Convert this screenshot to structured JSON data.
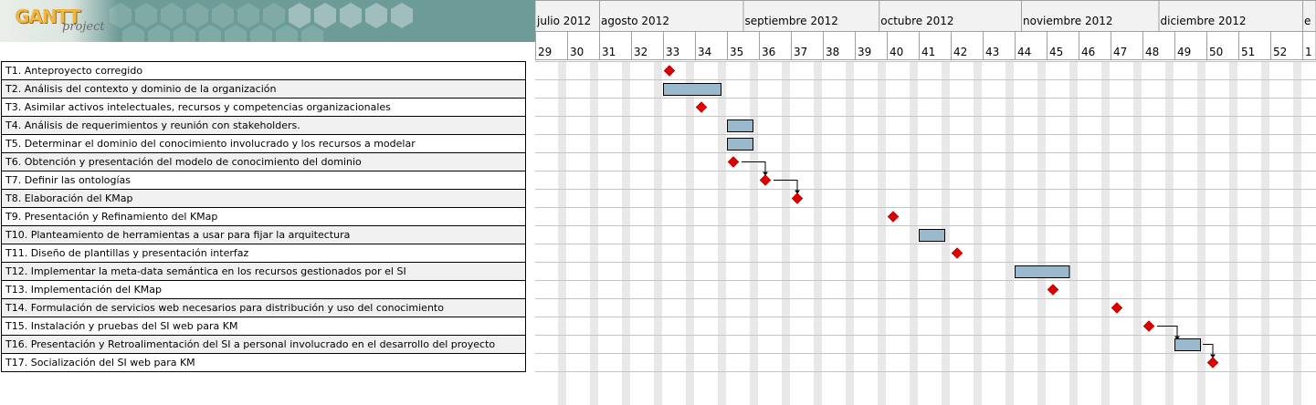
{
  "logo": {
    "text": "GANTT",
    "sub": "project"
  },
  "timeline": {
    "months": [
      "julio 2012",
      "agosto 2012",
      "septiembre 2012",
      "octubre 2012",
      "noviembre 2012",
      "diciembre 2012",
      "e"
    ],
    "weeks": [
      "29",
      "30",
      "31",
      "32",
      "33",
      "34",
      "35",
      "36",
      "37",
      "38",
      "39",
      "40",
      "41",
      "42",
      "43",
      "44",
      "45",
      "46",
      "47",
      "48",
      "49",
      "50",
      "51",
      "52",
      "1"
    ]
  },
  "colors": {
    "bar_fill": "#9ab9cc",
    "milestone": "#e00000",
    "weekend": "#e8e8e8",
    "grid": "#a0a0a0"
  },
  "tasks": [
    {
      "label": "T1. Anteproyecto corregido",
      "type": "milestone",
      "week": 33
    },
    {
      "label": "T2. Análisis del contexto y dominio de la organización",
      "type": "bar",
      "start_week": 33,
      "end_week": 34.8
    },
    {
      "label": "T3. Asimilar activos intelectuales, recursos y competencias organizacionales",
      "type": "milestone",
      "week": 34
    },
    {
      "label": "T4. Análisis de requerimientos y reunión con stakeholders.",
      "type": "bar",
      "start_week": 35,
      "end_week": 35.8
    },
    {
      "label": "T5. Determinar el dominio del conocimiento involucrado y los recursos a modelar",
      "type": "bar",
      "start_week": 35,
      "end_week": 35.8
    },
    {
      "label": "T6. Obtención y presentación del modelo de conocimiento del dominio",
      "type": "milestone",
      "week": 35
    },
    {
      "label": "T7. Definir las ontologías",
      "type": "milestone",
      "week": 36
    },
    {
      "label": "T8. Elaboración del KMap",
      "type": "milestone",
      "week": 37
    },
    {
      "label": "T9. Presentación y Refinamiento del KMap",
      "type": "milestone",
      "week": 40
    },
    {
      "label": "T10. Planteamiento de herramientas a usar para fijar la arquitectura",
      "type": "bar",
      "start_week": 41,
      "end_week": 41.8
    },
    {
      "label": "T11. Diseño de plantillas y presentación interfaz",
      "type": "milestone",
      "week": 42
    },
    {
      "label": "T12. Implementar la meta-data semántica en los recursos gestionados por el SI",
      "type": "bar",
      "start_week": 44,
      "end_week": 45.7
    },
    {
      "label": "T13. Implementación del KMap",
      "type": "milestone",
      "week": 45
    },
    {
      "label": "T14. Formulación de servicios web necesarios para distribución y uso del conocimiento",
      "type": "milestone",
      "week": 47
    },
    {
      "label": "T15. Instalación y pruebas del SI web para KM",
      "type": "milestone",
      "week": 48
    },
    {
      "label": "T16. Presentación y Retroalimentación del SI a personal involucrado en el desarrollo del proyecto",
      "type": "bar",
      "start_week": 49,
      "end_week": 49.8
    },
    {
      "label": "T17. Socialización del SI web para KM",
      "type": "milestone",
      "week": 50
    }
  ],
  "dependencies": [
    [
      5,
      6
    ],
    [
      6,
      7
    ],
    [
      14,
      15
    ],
    [
      15,
      16
    ]
  ]
}
